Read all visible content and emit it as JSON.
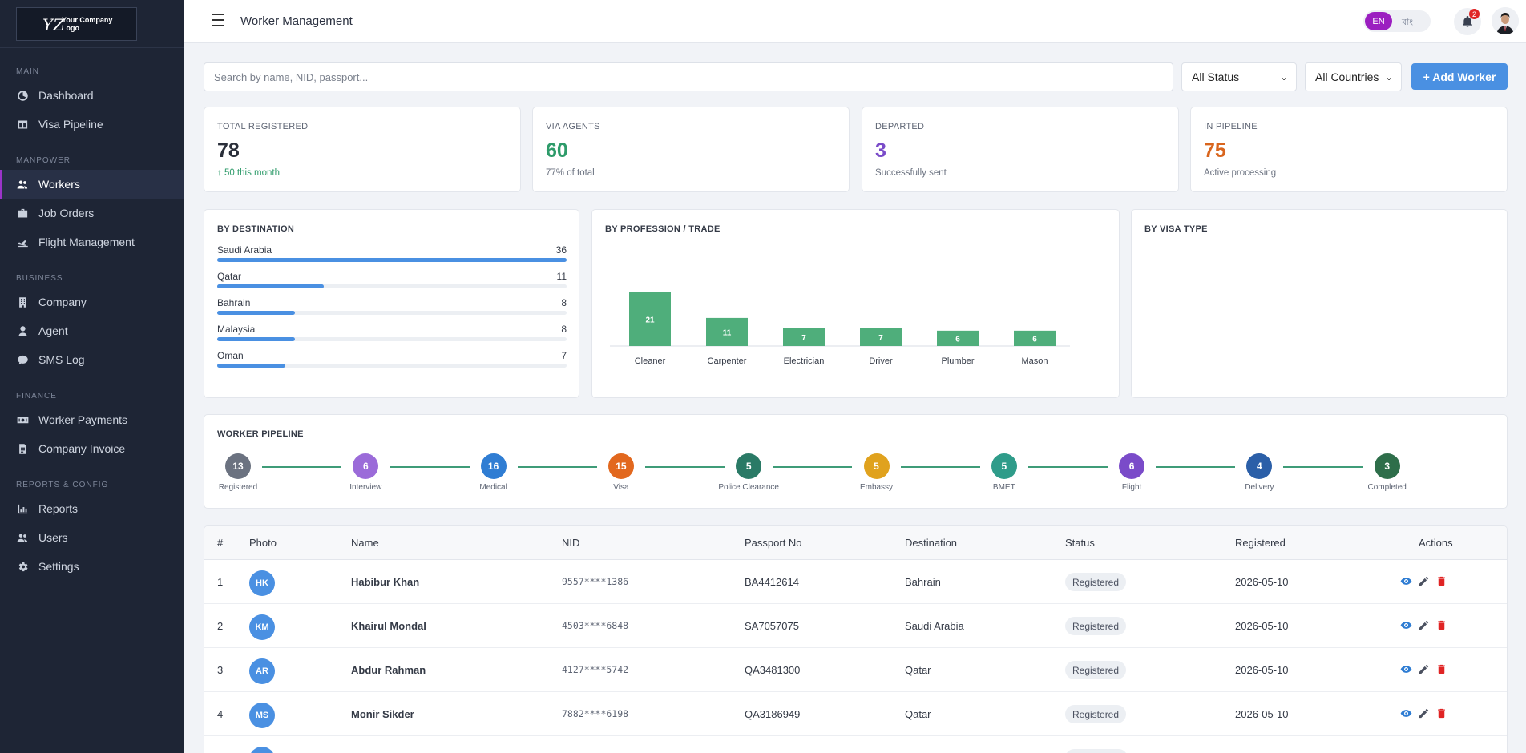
{
  "logo": {
    "text": "Your Company Logo"
  },
  "sidebar": {
    "sections": [
      {
        "label": "MAIN",
        "items": [
          {
            "label": "Dashboard",
            "icon": "dashboard-icon"
          },
          {
            "label": "Visa Pipeline",
            "icon": "table-icon"
          }
        ]
      },
      {
        "label": "MANPOWER",
        "items": [
          {
            "label": "Workers",
            "icon": "users-icon",
            "active": true
          },
          {
            "label": "Job Orders",
            "icon": "briefcase-icon"
          },
          {
            "label": "Flight Management",
            "icon": "plane-icon"
          }
        ]
      },
      {
        "label": "BUSINESS",
        "items": [
          {
            "label": "Company",
            "icon": "building-icon"
          },
          {
            "label": "Agent",
            "icon": "user-icon"
          },
          {
            "label": "SMS Log",
            "icon": "chat-icon"
          }
        ]
      },
      {
        "label": "FINANCE",
        "items": [
          {
            "label": "Worker Payments",
            "icon": "money-icon"
          },
          {
            "label": "Company Invoice",
            "icon": "invoice-icon"
          }
        ]
      },
      {
        "label": "REPORTS & CONFIG",
        "items": [
          {
            "label": "Reports",
            "icon": "chart-icon"
          },
          {
            "label": "Users",
            "icon": "users-icon"
          },
          {
            "label": "Settings",
            "icon": "gear-icon"
          }
        ]
      }
    ]
  },
  "header": {
    "title": "Worker Management",
    "lang_en": "EN",
    "lang_bn": "বাং",
    "notification_count": "2"
  },
  "filters": {
    "search_placeholder": "Search by name, NID, passport...",
    "status": "All Status",
    "country": "All Countries",
    "add_label": "+ Add Worker"
  },
  "stats": [
    {
      "label": "TOTAL REGISTERED",
      "value": "78",
      "sub": "↑ 50 this month",
      "color": "#2a2f3a",
      "sub_color": "#2e9b6a"
    },
    {
      "label": "VIA AGENTS",
      "value": "60",
      "sub": "77% of total",
      "color": "#2e9b6a",
      "sub_color": "#6b7280"
    },
    {
      "label": "DEPARTED",
      "value": "3",
      "sub": "Successfully sent",
      "color": "#7a4bc9",
      "sub_color": "#6b7280"
    },
    {
      "label": "IN PIPELINE",
      "value": "75",
      "sub": "Active processing",
      "color": "#d9651d",
      "sub_color": "#6b7280"
    }
  ],
  "destination": {
    "title": "BY DESTINATION",
    "rows": [
      {
        "name": "Saudi Arabia",
        "value": 36
      },
      {
        "name": "Qatar",
        "value": 11
      },
      {
        "name": "Bahrain",
        "value": 8
      },
      {
        "name": "Malaysia",
        "value": 8
      },
      {
        "name": "Oman",
        "value": 7
      }
    ],
    "max": 36
  },
  "profession": {
    "title": "BY PROFESSION / TRADE"
  },
  "visa": {
    "title": "BY VISA TYPE"
  },
  "chart_data": {
    "type": "bar",
    "title": "BY PROFESSION / TRADE",
    "categories": [
      "Cleaner",
      "Carpenter",
      "Electrician",
      "Driver",
      "Plumber",
      "Mason"
    ],
    "values": [
      21,
      11,
      7,
      7,
      6,
      6
    ],
    "ylim": [
      0,
      21
    ],
    "color": "#4fae7b"
  },
  "pipeline": {
    "title": "WORKER PIPELINE",
    "steps": [
      {
        "label": "Registered",
        "count": "13",
        "color": "#6b7280"
      },
      {
        "label": "Interview",
        "count": "6",
        "color": "#9b6bd9"
      },
      {
        "label": "Medical",
        "count": "16",
        "color": "#2f7dd3"
      },
      {
        "label": "Visa",
        "count": "15",
        "color": "#e2681e"
      },
      {
        "label": "Police Clearance",
        "count": "5",
        "color": "#2a7a66"
      },
      {
        "label": "Embassy",
        "count": "5",
        "color": "#e0a21e"
      },
      {
        "label": "BMET",
        "count": "5",
        "color": "#2f9c8a"
      },
      {
        "label": "Flight",
        "count": "6",
        "color": "#7a4bc9"
      },
      {
        "label": "Delivery",
        "count": "4",
        "color": "#2b5fa8"
      },
      {
        "label": "Completed",
        "count": "3",
        "color": "#2e6e4a"
      }
    ]
  },
  "table": {
    "headers": [
      "#",
      "Photo",
      "Name",
      "NID",
      "Passport No",
      "Destination",
      "Status",
      "Registered",
      "Actions"
    ],
    "rows": [
      {
        "num": "1",
        "initials": "HK",
        "name": "Habibur Khan",
        "nid": "9557****1386",
        "passport": "BA4412614",
        "destination": "Bahrain",
        "status": "Registered",
        "registered": "2026-05-10"
      },
      {
        "num": "2",
        "initials": "KM",
        "name": "Khairul Mondal",
        "nid": "4503****6848",
        "passport": "SA7057075",
        "destination": "Saudi Arabia",
        "status": "Registered",
        "registered": "2026-05-10"
      },
      {
        "num": "3",
        "initials": "AR",
        "name": "Abdur Rahman",
        "nid": "4127****5742",
        "passport": "QA3481300",
        "destination": "Qatar",
        "status": "Registered",
        "registered": "2026-05-10"
      },
      {
        "num": "4",
        "initials": "MS",
        "name": "Monir Sikder",
        "nid": "7882****6198",
        "passport": "QA3186949",
        "destination": "Qatar",
        "status": "Registered",
        "registered": "2026-05-10"
      }
    ]
  }
}
